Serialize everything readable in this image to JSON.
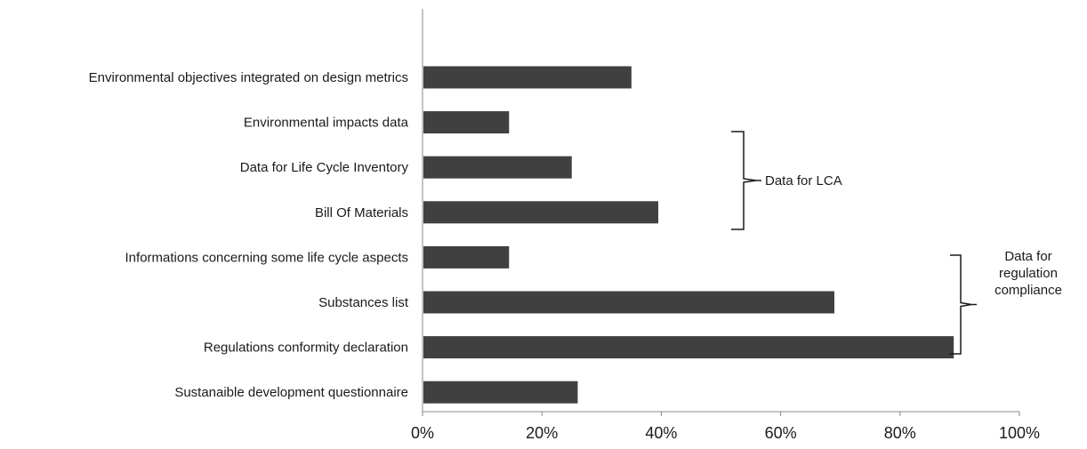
{
  "chart_data": {
    "type": "bar",
    "orientation": "horizontal",
    "categories": [
      "Environmental objectives integrated on design metrics",
      "Environmental impacts data",
      "Data for Life Cycle Inventory",
      "Bill Of Materials",
      "Informations concerning some life cycle aspects",
      "Substances list",
      "Regulations conformity declaration",
      "Sustanaible development questionnaire"
    ],
    "values": [
      35,
      14.5,
      25,
      39.5,
      14.5,
      69,
      89,
      26
    ],
    "xlim": [
      0,
      100
    ],
    "xticks": [
      0,
      20,
      40,
      60,
      80,
      100
    ],
    "xtick_labels": [
      "0%",
      "20%",
      "40%",
      "60%",
      "80%",
      "100%"
    ],
    "grid": false,
    "bar_color": "#404040",
    "annotations": [
      {
        "text": "Data for LCA",
        "brackets_categories": [
          "Environmental impacts data",
          "Data for Life Cycle Inventory",
          "Bill Of Materials"
        ]
      },
      {
        "text": "Data for regulation compliance",
        "lines": [
          "Data for",
          "regulation",
          "compliance"
        ],
        "brackets_categories": [
          "Informations concerning some life cycle aspects",
          "Substances list",
          "Regulations conformity declaration"
        ]
      }
    ]
  }
}
